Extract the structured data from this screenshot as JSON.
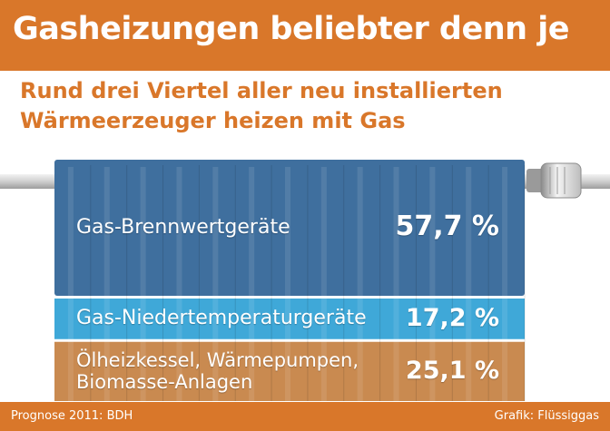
{
  "header": {
    "title": "Gasheizungen beliebter denn je",
    "subtitle_line1": "Rund drei Viertel aller neu installierten",
    "subtitle_line2": "Wärmeerzeuger heizen mit Gas"
  },
  "footer": {
    "source": "Prognose 2011: BDH",
    "credit": "Grafik: Flüssiggas"
  },
  "colors": {
    "brand_orange": "#d9772a",
    "segment_1": "#3f6f9e",
    "segment_2": "#3fa8d8",
    "segment_3": "#c98a50"
  },
  "chart_data": {
    "type": "bar",
    "stacked": true,
    "unit": "%",
    "title": "Gasheizungen beliebter denn je",
    "subtitle": "Rund drei Viertel aller neu installierten Wärmeerzeuger heizen mit Gas",
    "categories": [
      "Gas-Brennwertgeräte",
      "Gas-Niedertemperaturgeräte",
      "Ölheizkessel, Wärmepumpen, Biomasse-Anlagen"
    ],
    "values": [
      57.7,
      17.2,
      25.1
    ],
    "labels": [
      {
        "line1": "Gas-Brennwertgeräte",
        "line2": "",
        "value": "57,7 %"
      },
      {
        "line1": "Gas-Niedertemperaturgeräte",
        "line2": "",
        "value": "17,2 %"
      },
      {
        "line1": "Ölheizkessel, Wärmepumpen,",
        "line2": "Biomasse-Anlagen",
        "value": "25,1 %"
      }
    ]
  }
}
